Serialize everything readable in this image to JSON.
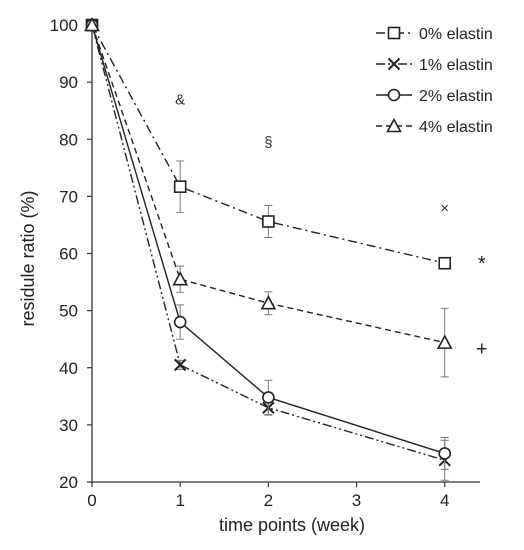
{
  "chart_data": {
    "type": "line",
    "title": "",
    "xlabel": "time points (week)",
    "ylabel": "residule ratio (%)",
    "xlim": [
      0,
      4.4
    ],
    "ylim": [
      20,
      100
    ],
    "xticks": [
      "0",
      "1",
      "2",
      "3",
      "4"
    ],
    "yticks": [
      "20",
      "30",
      "40",
      "50",
      "60",
      "70",
      "80",
      "90",
      "100"
    ],
    "grid": false,
    "legend_position": "top-right",
    "x": [
      0,
      1,
      2,
      4
    ],
    "series": [
      {
        "name": "0% elastin",
        "marker": "square",
        "dash": "dash-dot",
        "values": [
          100,
          71.7,
          65.6,
          58.3
        ],
        "errors": [
          0,
          4.5,
          2.8,
          0.8
        ]
      },
      {
        "name": "1% elastin",
        "marker": "x",
        "dash": "dash-dot-dot",
        "values": [
          100,
          40.5,
          33.0,
          23.8
        ],
        "errors": [
          0,
          0.8,
          1.3,
          3.5
        ]
      },
      {
        "name": "2% elastin",
        "marker": "circle",
        "dash": "solid",
        "values": [
          100,
          48.0,
          34.8,
          25.0
        ],
        "errors": [
          0,
          3.0,
          3.0,
          2.8
        ]
      },
      {
        "name": "4% elastin",
        "marker": "triangle",
        "dash": "dashed",
        "values": [
          100,
          55.5,
          51.3,
          44.4
        ],
        "errors": [
          0,
          2.3,
          2.0,
          6.0
        ]
      }
    ],
    "annotations": [
      {
        "text": "&",
        "x": 1,
        "y": 87
      },
      {
        "text": "§",
        "x": 2,
        "y": 79.5
      },
      {
        "text": "×",
        "x": 4,
        "y": 68
      },
      {
        "text": "*",
        "x": 4.42,
        "y": 58
      },
      {
        "text": "+",
        "x": 4.42,
        "y": 43
      }
    ]
  }
}
